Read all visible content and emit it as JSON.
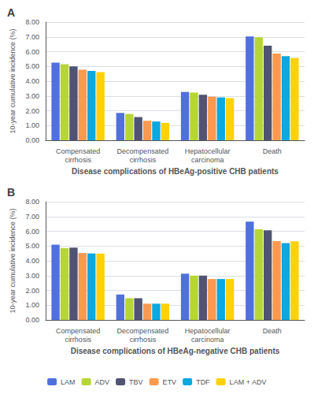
{
  "chart_data": [
    {
      "type": "bar",
      "title": "A",
      "categories": [
        "Compensated\ncirrhosis",
        "Decompensated\ncirrhosis",
        "Hepatocellular\ncarcinoma",
        "Death"
      ],
      "xlabel": "Disease complications of HBeAg-positive CHB patients",
      "ylabel": "10-year cumulative incidence (%)",
      "series": [
        {
          "name": "LAM",
          "values": [
            5.25,
            1.85,
            3.27,
            7.03
          ]
        },
        {
          "name": "ADV",
          "values": [
            5.15,
            1.78,
            3.23,
            6.97
          ]
        },
        {
          "name": "TBV",
          "values": [
            5.0,
            1.57,
            3.08,
            6.4
          ]
        },
        {
          "name": "ETV",
          "values": [
            4.77,
            1.32,
            2.95,
            5.87
          ]
        },
        {
          "name": "TDF",
          "values": [
            4.7,
            1.27,
            2.9,
            5.7
          ]
        },
        {
          "name": "LAM + ADV",
          "values": [
            4.62,
            1.18,
            2.85,
            5.57
          ]
        }
      ],
      "ylim": [
        0,
        8.0
      ],
      "yticks": [
        {
          "value": 0,
          "label": "0.00"
        },
        {
          "value": 1,
          "label": "1.00"
        },
        {
          "value": 2,
          "label": "2.00"
        },
        {
          "value": 3,
          "label": "3.00"
        },
        {
          "value": 4,
          "label": "4.00"
        },
        {
          "value": 5,
          "label": "5.00"
        },
        {
          "value": 6,
          "label": "6.00"
        },
        {
          "value": 7,
          "label": "7.00"
        },
        {
          "value": 8,
          "label": "8.00"
        }
      ],
      "grid": true
    },
    {
      "type": "bar",
      "title": "B",
      "categories": [
        "Compensated\ncirrhosis",
        "Decompensated\ncirrhosis",
        "Hepatocellular\ncarcinoma",
        "Death"
      ],
      "xlabel": "Disease complications of HBeAg-negative CHB patients",
      "ylabel": "10-year cumulative incidence (%)",
      "series": [
        {
          "name": "LAM",
          "values": [
            5.1,
            1.72,
            3.13,
            6.65
          ]
        },
        {
          "name": "ADV",
          "values": [
            4.87,
            1.47,
            3.0,
            6.13
          ]
        },
        {
          "name": "TBV",
          "values": [
            4.9,
            1.47,
            3.0,
            6.07
          ]
        },
        {
          "name": "ETV",
          "values": [
            4.53,
            1.1,
            2.77,
            5.33
          ]
        },
        {
          "name": "TDF",
          "values": [
            4.5,
            1.1,
            2.77,
            5.2
          ]
        },
        {
          "name": "LAM + ADV",
          "values": [
            4.5,
            1.1,
            2.77,
            5.32
          ]
        }
      ],
      "ylim": [
        0,
        8.0
      ],
      "yticks": [
        {
          "value": 0,
          "label": "0.00"
        },
        {
          "value": 1,
          "label": "1.00"
        },
        {
          "value": 2,
          "label": "2.00"
        },
        {
          "value": 3,
          "label": "3.00"
        },
        {
          "value": 4,
          "label": "4.00"
        },
        {
          "value": 5,
          "label": "5.00"
        },
        {
          "value": 6,
          "label": "6.00"
        },
        {
          "value": 7,
          "label": "7.00"
        },
        {
          "value": 8,
          "label": "8.00"
        }
      ],
      "grid": true,
      "legend": "bottom"
    }
  ]
}
